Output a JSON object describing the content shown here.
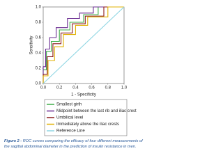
{
  "chart_data": {
    "type": "line",
    "ylabel": "Sensitivity",
    "xlabel": "1 - Specificity",
    "xlim": [
      0,
      1
    ],
    "ylim": [
      0,
      1
    ],
    "xticks": [
      {
        "value": 0,
        "label": "0.0"
      },
      0.2,
      0.4,
      0.6,
      0.8,
      {
        "value": 1,
        "label": "1.0"
      }
    ],
    "yticks": [
      {
        "value": 0,
        "label": "0.0"
      },
      0.2,
      0.4,
      0.6,
      0.8,
      {
        "value": 1,
        "label": "1.0"
      }
    ],
    "series": [
      {
        "name": "Smallest girth",
        "color": "#3fae49",
        "x": [
          0,
          0,
          0.04,
          0.04,
          0.1,
          0.1,
          0.2,
          0.2,
          0.33,
          0.33,
          0.5,
          0.5,
          0.68,
          0.68,
          1
        ],
        "values": [
          0,
          0.18,
          0.18,
          0.42,
          0.42,
          0.55,
          0.55,
          0.7,
          0.7,
          0.8,
          0.8,
          0.9,
          0.9,
          1,
          1
        ]
      },
      {
        "name": "Midpoint between the last rib and iliac crest",
        "color": "#6a2c91",
        "x": [
          0,
          0,
          0.03,
          0.03,
          0.08,
          0.08,
          0.16,
          0.16,
          0.3,
          0.3,
          0.45,
          0.45,
          0.62,
          0.62,
          1
        ],
        "values": [
          0,
          0.22,
          0.22,
          0.45,
          0.45,
          0.6,
          0.6,
          0.73,
          0.73,
          0.85,
          0.85,
          0.92,
          0.92,
          1,
          1
        ]
      },
      {
        "name": "Umbilical level",
        "color": "#8b1a1a",
        "x": [
          0,
          0,
          0.05,
          0.05,
          0.12,
          0.12,
          0.22,
          0.22,
          0.36,
          0.36,
          0.52,
          0.52,
          0.75,
          0.75,
          1
        ],
        "values": [
          0,
          0.12,
          0.12,
          0.35,
          0.35,
          0.52,
          0.52,
          0.66,
          0.66,
          0.78,
          0.78,
          0.88,
          0.88,
          1,
          1
        ]
      },
      {
        "name": "Immediately above the iliac crests",
        "color": "#e0b000",
        "x": [
          0,
          0,
          0.06,
          0.06,
          0.14,
          0.14,
          0.25,
          0.25,
          0.4,
          0.4,
          0.55,
          0.55,
          0.8,
          0.8,
          1
        ],
        "values": [
          0,
          0.1,
          0.1,
          0.3,
          0.3,
          0.48,
          0.48,
          0.64,
          0.64,
          0.76,
          0.76,
          0.87,
          0.87,
          1,
          1
        ]
      },
      {
        "name": "Reference Line",
        "color": "#8fd6e3",
        "x": [
          0,
          1
        ],
        "values": [
          0,
          1
        ]
      }
    ],
    "caption_label": "Figure 2 -",
    "caption": "ROC curves comparing the efficacy of four different measurements of the sagittal abdominal diameter in the prediction of insulin resistance in men."
  }
}
